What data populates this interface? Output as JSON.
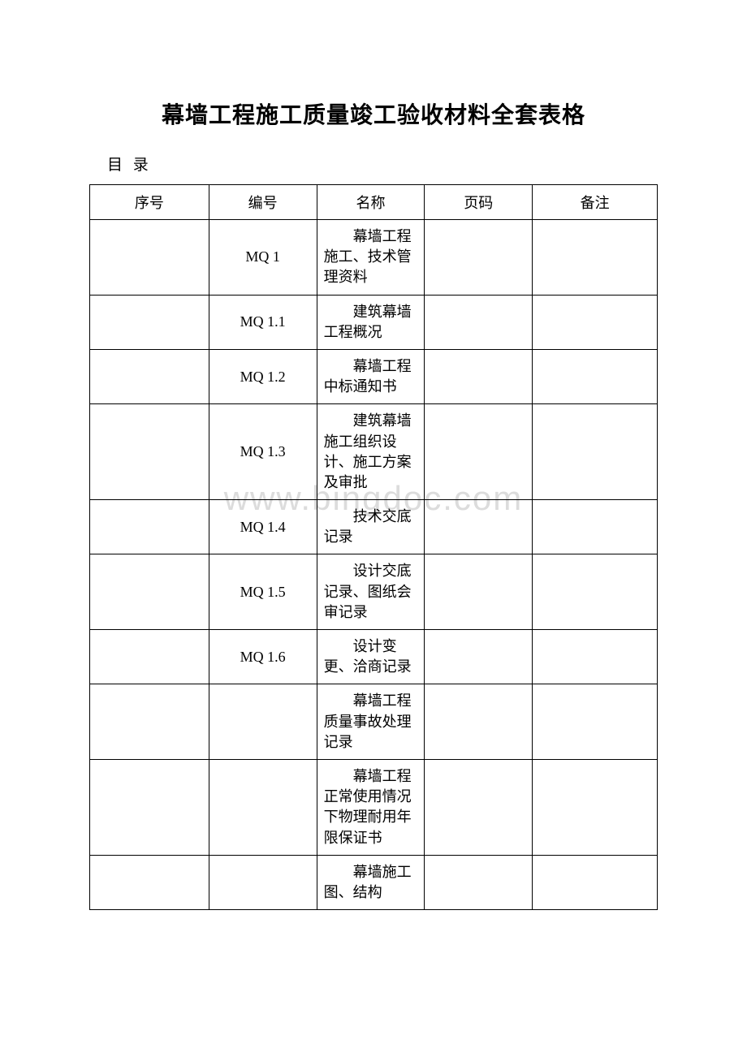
{
  "document": {
    "title": "幕墙工程施工质量竣工验收材料全套表格",
    "subtitle": "目 录",
    "watermark": "www.bingdoc.com"
  },
  "table": {
    "headers": {
      "seq": "序号",
      "code": "编号",
      "name": "名称",
      "page": "页码",
      "remark": "备注"
    },
    "rows": [
      {
        "seq": "",
        "code": "MQ 1",
        "name": "幕墙工程施工、技术管理资料",
        "page": "",
        "remark": ""
      },
      {
        "seq": "",
        "code": "MQ 1.1",
        "name": "建筑幕墙工程概况",
        "page": "",
        "remark": ""
      },
      {
        "seq": "",
        "code": "MQ 1.2",
        "name": "幕墙工程中标通知书",
        "page": "",
        "remark": ""
      },
      {
        "seq": "",
        "code": "MQ 1.3",
        "name": "建筑幕墙施工组织设计、施工方案及审批",
        "page": "",
        "remark": ""
      },
      {
        "seq": "",
        "code": "MQ 1.4",
        "name": "技术交底记录",
        "page": "",
        "remark": ""
      },
      {
        "seq": "",
        "code": "MQ 1.5",
        "name": "设计交底记录、图纸会审记录",
        "page": "",
        "remark": ""
      },
      {
        "seq": "",
        "code": "MQ 1.6",
        "name": "设计变更、洽商记录",
        "page": "",
        "remark": ""
      },
      {
        "seq": "",
        "code": "",
        "name": "幕墙工程质量事故处理记录",
        "page": "",
        "remark": ""
      },
      {
        "seq": "",
        "code": "",
        "name": "幕墙工程正常使用情况下物理耐用年限保证书",
        "page": "",
        "remark": ""
      },
      {
        "seq": "",
        "code": "",
        "name": "幕墙施工图、结构",
        "page": "",
        "remark": ""
      }
    ]
  },
  "style": {
    "background_color": "#ffffff",
    "text_color": "#000000",
    "border_color": "#000000",
    "watermark_color": "#dcdcdc",
    "title_fontsize": 28,
    "body_fontsize": 18,
    "font_family": "SimSun"
  }
}
